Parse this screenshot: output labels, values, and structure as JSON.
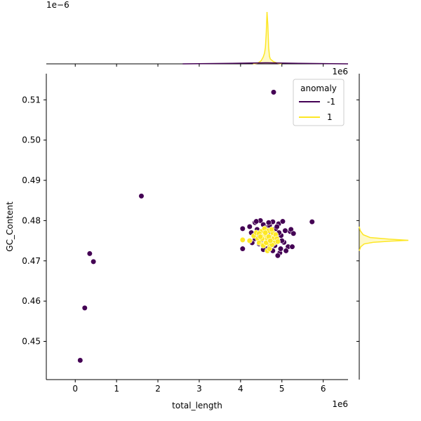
{
  "chart_data": {
    "type": "scatter",
    "title": "",
    "xlabel": "total_length",
    "ylabel": "GC_Content",
    "x_offset_label": "1e6",
    "marginal_x_offset_label": "1e6",
    "marginal_top_offset_label": "1e−6",
    "xlim": [
      -700000,
      6600000
    ],
    "ylim": [
      0.4405,
      0.5165
    ],
    "x_ticks": [
      0,
      1000000,
      2000000,
      3000000,
      4000000,
      5000000,
      6000000
    ],
    "x_tick_labels": [
      "0",
      "1",
      "2",
      "3",
      "4",
      "5",
      "6"
    ],
    "y_ticks": [
      0.45,
      0.46,
      0.47,
      0.48,
      0.49,
      0.5,
      0.51
    ],
    "y_tick_labels": [
      "0.45",
      "0.46",
      "0.47",
      "0.48",
      "0.49",
      "0.50",
      "0.51"
    ],
    "grid": false,
    "legend": {
      "title": "anomaly",
      "placement": "top-right",
      "entries": [
        {
          "label": "-1",
          "color": "#440154"
        },
        {
          "label": "1",
          "color": "#fde725"
        }
      ]
    },
    "series": [
      {
        "name": "-1",
        "color": "#440154",
        "points": [
          [
            120000,
            0.4453
          ],
          [
            230000,
            0.4583
          ],
          [
            350000,
            0.4718
          ],
          [
            440000,
            0.4698
          ],
          [
            1600000,
            0.4861
          ],
          [
            4800000,
            0.5119
          ],
          [
            5730000,
            0.4797
          ],
          [
            4050000,
            0.478
          ],
          [
            4050000,
            0.473
          ],
          [
            4220000,
            0.4785
          ],
          [
            4280000,
            0.4745
          ],
          [
            4350000,
            0.4795
          ],
          [
            4400000,
            0.4778
          ],
          [
            4480000,
            0.48
          ],
          [
            4550000,
            0.479
          ],
          [
            4620000,
            0.4782
          ],
          [
            4700000,
            0.4788
          ],
          [
            4780000,
            0.4797
          ],
          [
            4850000,
            0.478
          ],
          [
            4920000,
            0.4792
          ],
          [
            5020000,
            0.4798
          ],
          [
            4450000,
            0.476
          ],
          [
            4980000,
            0.4763
          ],
          [
            5050000,
            0.4746
          ],
          [
            4900000,
            0.4752
          ],
          [
            5080000,
            0.4775
          ],
          [
            5200000,
            0.4773
          ],
          [
            5220000,
            0.4778
          ],
          [
            5280000,
            0.4768
          ],
          [
            5150000,
            0.4735
          ],
          [
            5250000,
            0.4735
          ],
          [
            5100000,
            0.4725
          ],
          [
            4950000,
            0.472
          ],
          [
            4900000,
            0.4713
          ],
          [
            4780000,
            0.4725
          ],
          [
            4650000,
            0.473
          ],
          [
            4550000,
            0.4728
          ],
          [
            4450000,
            0.4742
          ],
          [
            4350000,
            0.4755
          ],
          [
            4500000,
            0.477
          ],
          [
            4600000,
            0.4762
          ],
          [
            4700000,
            0.4773
          ],
          [
            4750000,
            0.4745
          ],
          [
            4830000,
            0.4738
          ],
          [
            5000000,
            0.475
          ],
          [
            4380000,
            0.4798
          ],
          [
            4880000,
            0.4785
          ],
          [
            4680000,
            0.4795
          ],
          [
            4580000,
            0.4768
          ],
          [
            4930000,
            0.477
          ],
          [
            4720000,
            0.4758
          ],
          [
            4260000,
            0.477
          ],
          [
            4520000,
            0.4748
          ],
          [
            4970000,
            0.473
          ]
        ]
      },
      {
        "name": "1",
        "color": "#fde725",
        "points": [
          [
            4050000,
            0.4752
          ],
          [
            4220000,
            0.475
          ],
          [
            4320000,
            0.4762
          ],
          [
            4380000,
            0.477
          ],
          [
            4420000,
            0.4755
          ],
          [
            4450000,
            0.4745
          ],
          [
            4500000,
            0.4773
          ],
          [
            4530000,
            0.474
          ],
          [
            4550000,
            0.476
          ],
          [
            4580000,
            0.478
          ],
          [
            4600000,
            0.475
          ],
          [
            4620000,
            0.4765
          ],
          [
            4650000,
            0.4755
          ],
          [
            4680000,
            0.4775
          ],
          [
            4700000,
            0.474
          ],
          [
            4720000,
            0.476
          ],
          [
            4750000,
            0.475
          ],
          [
            4780000,
            0.477
          ],
          [
            4800000,
            0.4755
          ],
          [
            4820000,
            0.4745
          ],
          [
            4850000,
            0.4765
          ],
          [
            4880000,
            0.4755
          ],
          [
            4650000,
            0.4725
          ],
          [
            4700000,
            0.473
          ],
          [
            4750000,
            0.4778
          ],
          [
            4550000,
            0.4738
          ],
          [
            4450000,
            0.4768
          ],
          [
            4900000,
            0.4748
          ],
          [
            4620000,
            0.4745
          ],
          [
            4680000,
            0.476
          ],
          [
            4600000,
            0.477
          ],
          [
            4520000,
            0.4755
          ],
          [
            4760000,
            0.474
          ],
          [
            4480000,
            0.476
          ],
          [
            4720000,
            0.475
          ]
        ]
      }
    ],
    "marginal_x": {
      "type": "kde",
      "series": [
        {
          "name": "1",
          "color": "#fde725",
          "fill": "#fde725",
          "x": [
            4300000,
            4400000,
            4450000,
            4500000,
            4550000,
            4580000,
            4600000,
            4620000,
            4640000,
            4660000,
            4680000,
            4700000,
            4720000,
            4750000,
            4800000,
            4900000,
            5000000
          ],
          "density": [
            0.0,
            0.01,
            0.03,
            0.06,
            0.13,
            0.2,
            0.3,
            0.55,
            0.96,
            0.72,
            0.3,
            0.14,
            0.09,
            0.07,
            0.04,
            0.01,
            0.0
          ]
        },
        {
          "name": "-1",
          "color": "#440154",
          "fill": "#440154",
          "x": [
            2600000,
            3200000,
            3800000,
            4200000,
            4600000,
            5000000,
            5400000,
            6000000,
            6600000
          ],
          "density": [
            0.0,
            0.005,
            0.01,
            0.015,
            0.02,
            0.015,
            0.01,
            0.005,
            0.0
          ]
        }
      ]
    },
    "marginal_y": {
      "type": "kde",
      "series": [
        {
          "name": "1",
          "color": "#fde725",
          "fill": "#fde725",
          "y": [
            0.4725,
            0.4735,
            0.4742,
            0.4746,
            0.4749,
            0.4751,
            0.4754,
            0.4758,
            0.4765,
            0.4775,
            0.4785
          ],
          "density": [
            0.0,
            0.03,
            0.1,
            0.28,
            0.65,
            1.0,
            0.6,
            0.22,
            0.08,
            0.02,
            0.0
          ]
        }
      ]
    }
  }
}
